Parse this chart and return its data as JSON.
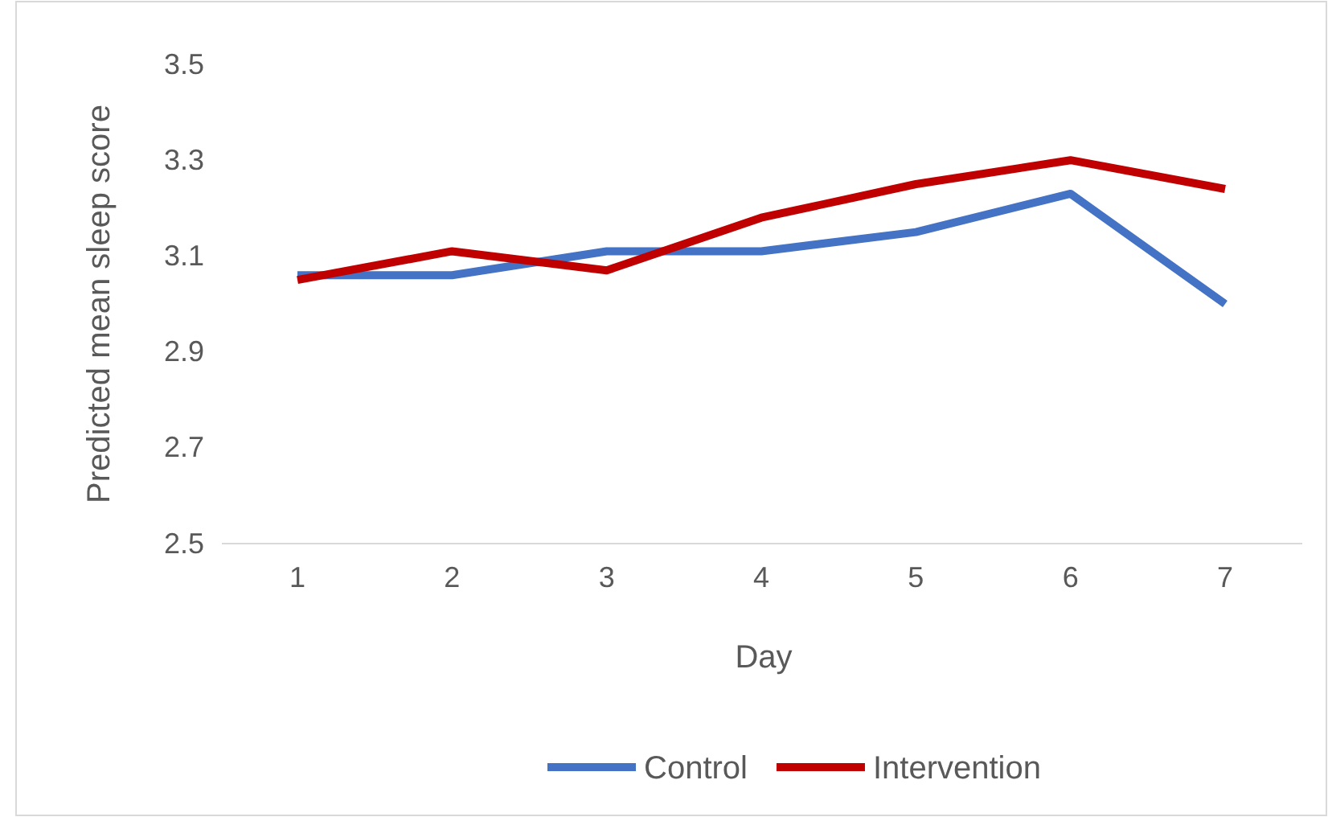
{
  "chart_data": {
    "type": "line",
    "xlabel": "Day",
    "ylabel": "Predicted mean sleep score",
    "categories": [
      "1",
      "2",
      "3",
      "4",
      "5",
      "6",
      "7"
    ],
    "series": [
      {
        "name": "Control",
        "color": "#4472c4",
        "values": [
          3.06,
          3.06,
          3.11,
          3.11,
          3.15,
          3.23,
          3.0
        ]
      },
      {
        "name": "Intervention",
        "color": "#c00000",
        "values": [
          3.05,
          3.11,
          3.07,
          3.18,
          3.25,
          3.3,
          3.24
        ]
      }
    ],
    "ylim": [
      2.5,
      3.5
    ],
    "yticks": [
      2.5,
      2.7,
      2.9,
      3.1,
      3.3,
      3.5
    ],
    "grid": false,
    "legend": "bottom",
    "marker": "none",
    "line_style": "solid"
  }
}
